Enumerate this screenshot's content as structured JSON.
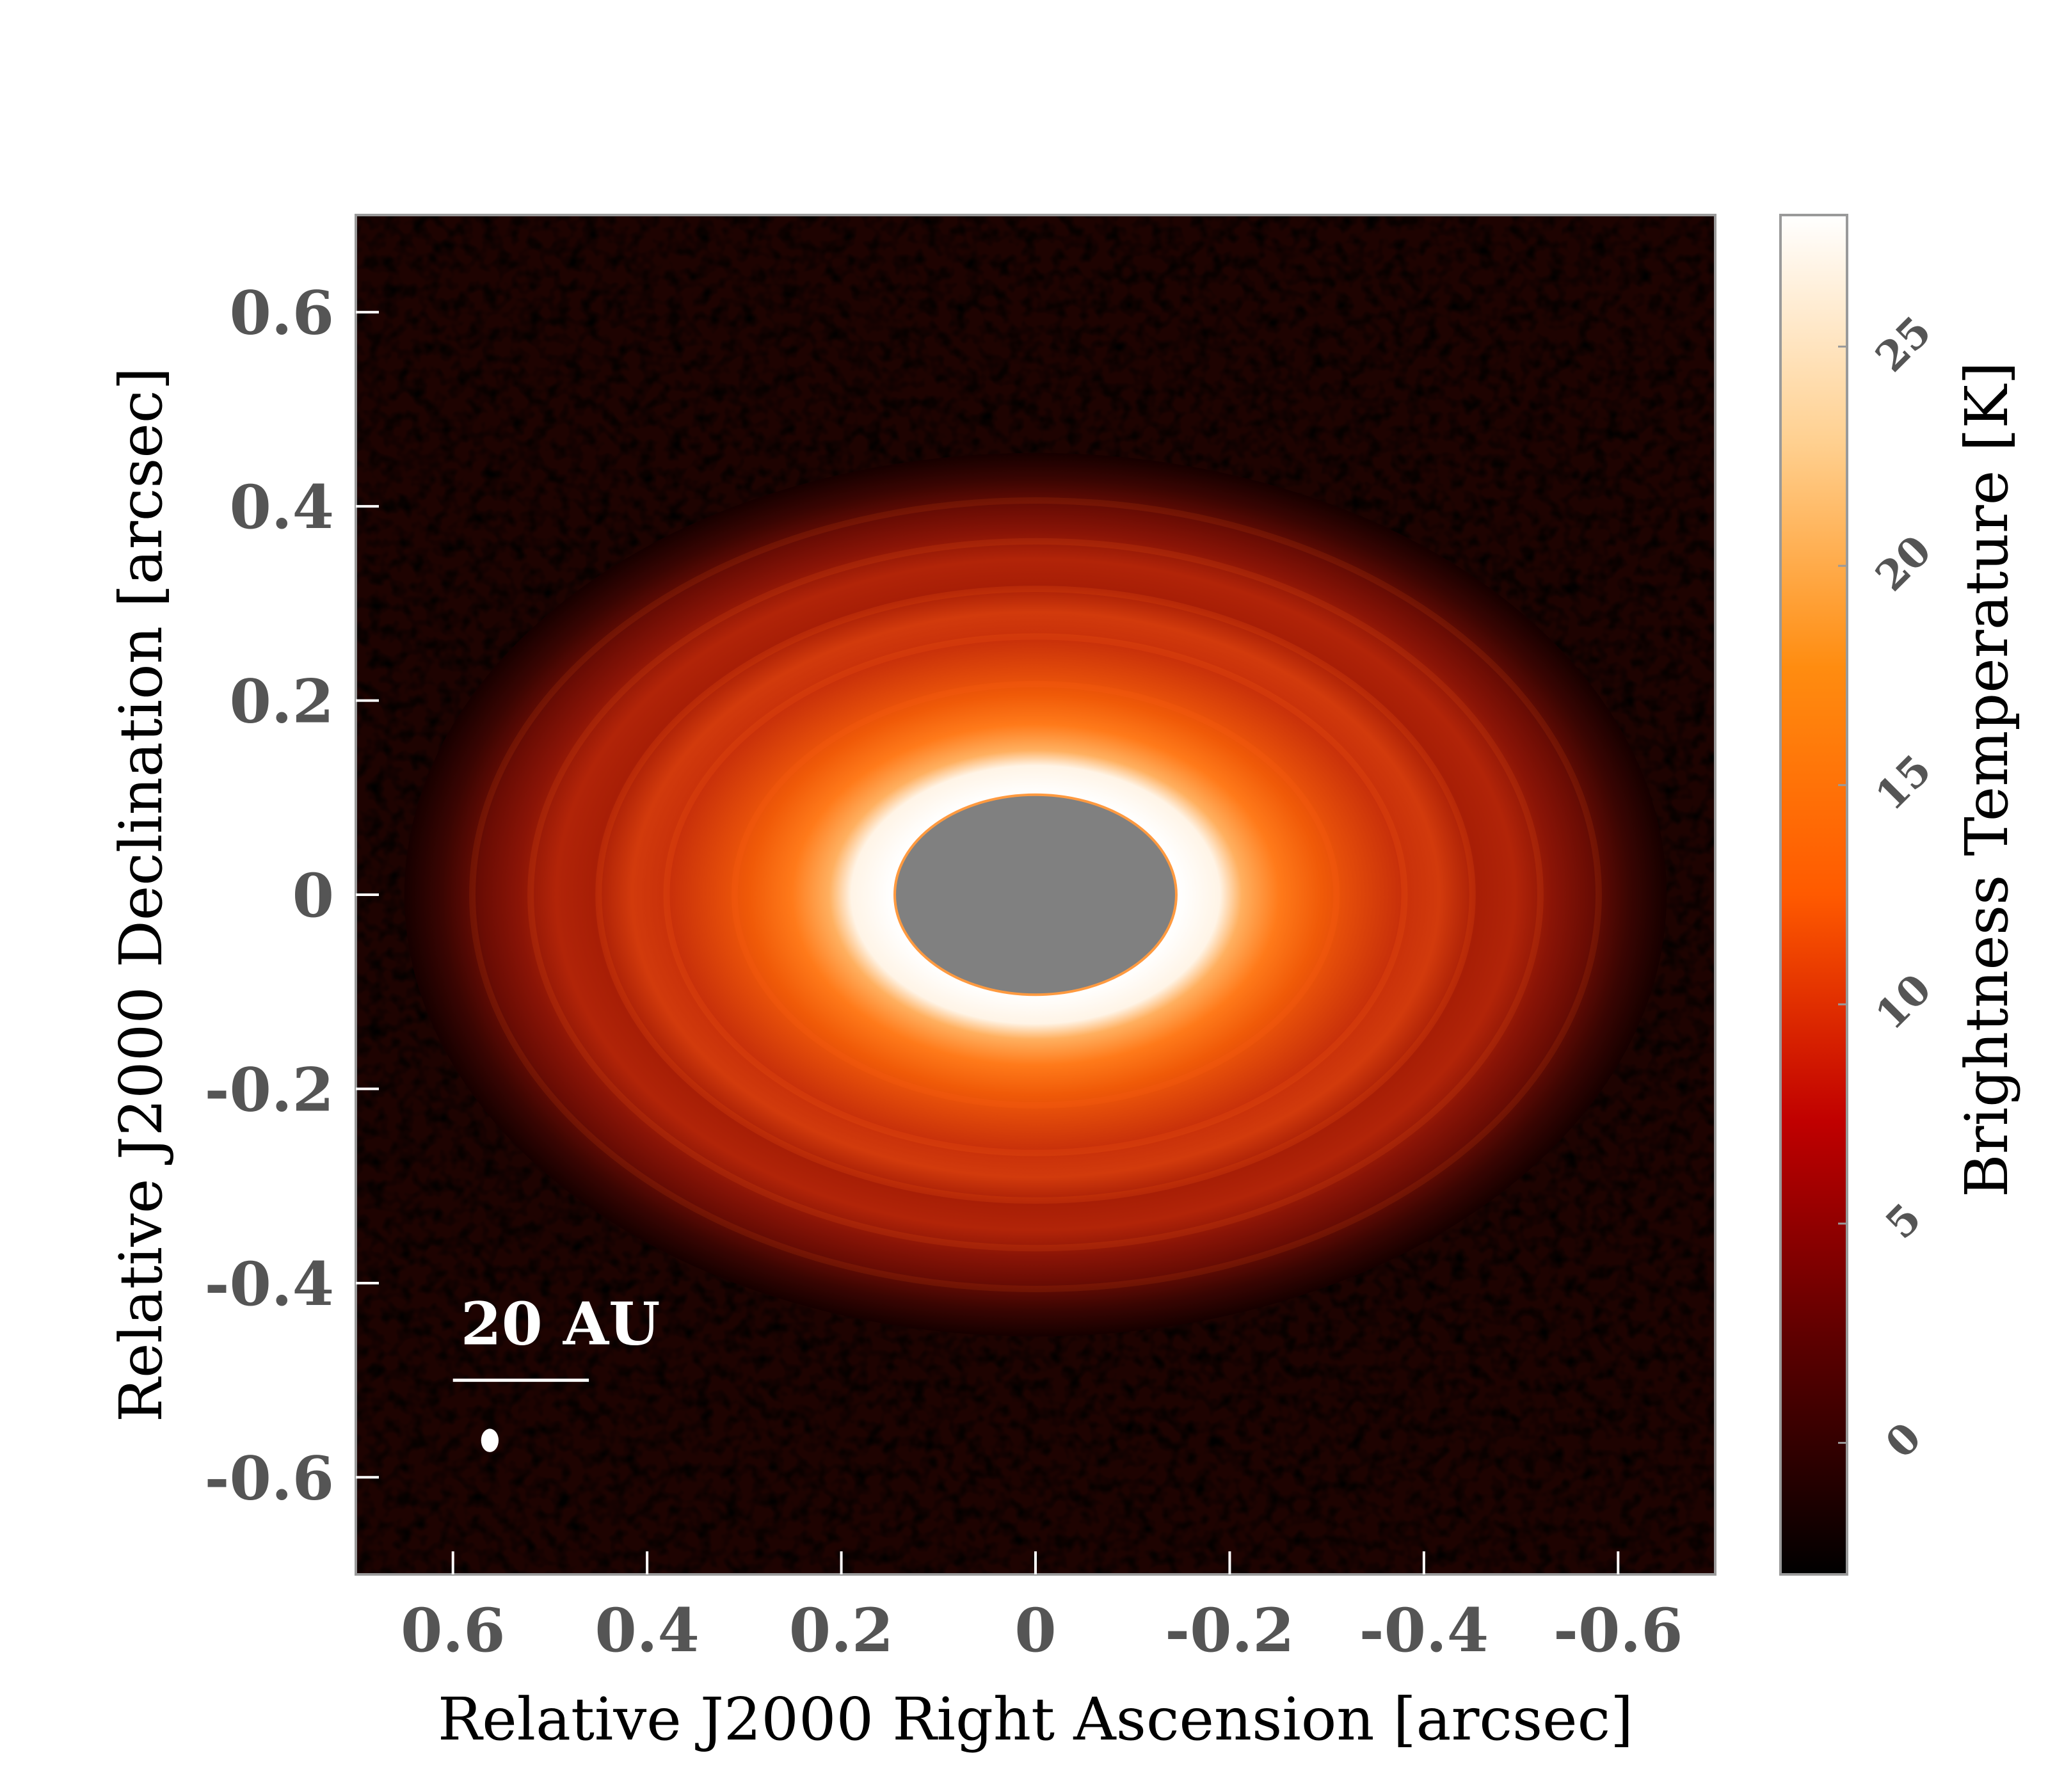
{
  "chart_data": {
    "type": "heatmap",
    "title": "",
    "xlabel": "Relative J2000 Right Ascension [arcsec]",
    "ylabel": "Relative J2000 Declination [arcsec]",
    "xlim": [
      0.7,
      -0.7
    ],
    "ylim": [
      -0.7,
      0.7
    ],
    "x_ticks": [
      0.6,
      0.4,
      0.2,
      0,
      -0.2,
      -0.4,
      -0.6
    ],
    "x_tick_labels": [
      "0.6",
      "0.4",
      "0.2",
      "0",
      "-0.2",
      "-0.4",
      "-0.6"
    ],
    "y_ticks": [
      0.6,
      0.4,
      0.2,
      0,
      -0.2,
      -0.4,
      -0.6
    ],
    "y_tick_labels": [
      "0.6",
      "0.4",
      "0.2",
      "0",
      "-0.2",
      "-0.4",
      "-0.6"
    ],
    "colorbar": {
      "label": "Brightness Temperature [K]",
      "range": [
        -3,
        28
      ],
      "ticks": [
        0,
        5,
        10,
        15,
        20,
        25
      ],
      "tick_labels": [
        "0",
        "5",
        "10",
        "15",
        "20",
        "25"
      ],
      "stops": [
        "#000000",
        "#5a0000",
        "#c00000",
        "#ff5a00",
        "#ff8c10",
        "#ffd090",
        "#ffffff"
      ]
    },
    "disk": {
      "peak_brightness_K": 27,
      "peak_ring_radius_arcsec": 0.19,
      "outer_extent_arcsec": 0.65,
      "aspect_ratio": 0.7,
      "masked_center": {
        "x": 0,
        "y": 0,
        "semi_major_arcsec": 0.145,
        "semi_minor_arcsec": 0.103,
        "color": "#808080"
      }
    },
    "scale_bar": {
      "label": "20 AU",
      "length_arcsec": 0.14,
      "x_start": 0.6,
      "y": -0.5
    },
    "beam": {
      "x": 0.562,
      "y": -0.562,
      "width_arcsec": 0.018,
      "height_arcsec": 0.024
    }
  }
}
